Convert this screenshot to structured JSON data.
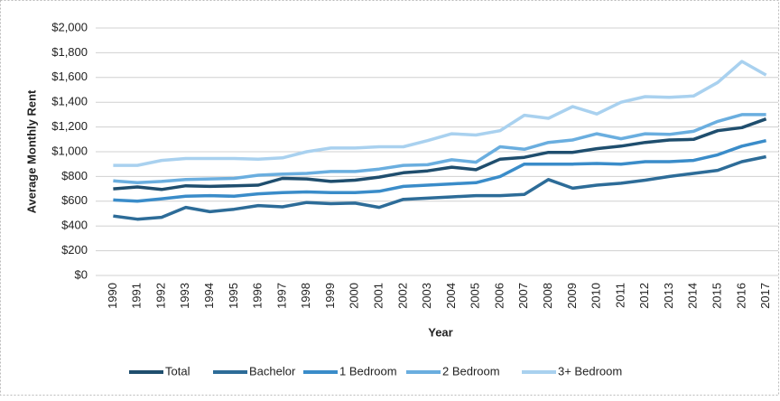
{
  "chart_data": {
    "type": "line",
    "x_label": "Year",
    "y_label": "Average Monthly Rent",
    "categories": [
      "1990",
      "1991",
      "1992",
      "1993",
      "1994",
      "1995",
      "1996",
      "1997",
      "1998",
      "1999",
      "2000",
      "2001",
      "2002",
      "2003",
      "2004",
      "2005",
      "2006",
      "2007",
      "2008",
      "2009",
      "2010",
      "2011",
      "2012",
      "2013",
      "2014",
      "2015",
      "2016",
      "2017"
    ],
    "series": [
      {
        "name": "Total",
        "color": "#1f4e6e",
        "values": [
          700,
          715,
          695,
          725,
          720,
          725,
          730,
          785,
          780,
          760,
          770,
          795,
          830,
          845,
          875,
          855,
          940,
          955,
          995,
          995,
          1025,
          1045,
          1075,
          1095,
          1100,
          1170,
          1195,
          1265
        ]
      },
      {
        "name": "Bachelor",
        "color": "#2d6c98",
        "values": [
          480,
          455,
          470,
          550,
          515,
          535,
          565,
          555,
          590,
          580,
          585,
          550,
          615,
          625,
          635,
          645,
          645,
          655,
          775,
          705,
          730,
          745,
          770,
          800,
          825,
          850,
          920,
          960
        ]
      },
      {
        "name": "1 Bedroom",
        "color": "#3a8cc9",
        "values": [
          610,
          600,
          620,
          640,
          645,
          640,
          660,
          670,
          675,
          670,
          670,
          680,
          720,
          730,
          740,
          750,
          800,
          900,
          900,
          900,
          905,
          900,
          920,
          920,
          930,
          975,
          1045,
          1090
        ]
      },
      {
        "name": "2 Bedroom",
        "color": "#6aaedf",
        "values": [
          765,
          750,
          760,
          775,
          780,
          785,
          810,
          820,
          825,
          840,
          840,
          860,
          890,
          895,
          935,
          915,
          1040,
          1020,
          1075,
          1095,
          1145,
          1105,
          1145,
          1140,
          1165,
          1245,
          1300,
          1300
        ]
      },
      {
        "name": "3+ Bedroom",
        "color": "#a9d1ef",
        "values": [
          890,
          890,
          930,
          945,
          945,
          945,
          940,
          950,
          1000,
          1030,
          1030,
          1040,
          1040,
          1090,
          1145,
          1135,
          1170,
          1295,
          1270,
          1365,
          1305,
          1400,
          1445,
          1440,
          1450,
          1560,
          1730,
          1620
        ]
      }
    ],
    "ylim": [
      0,
      2000
    ],
    "yticks": [
      {
        "value": 0,
        "label": "$0"
      },
      {
        "value": 200,
        "label": "$200"
      },
      {
        "value": 400,
        "label": "$400"
      },
      {
        "value": 600,
        "label": "$600"
      },
      {
        "value": 800,
        "label": "$800"
      },
      {
        "value": 1000,
        "label": "$1,000"
      },
      {
        "value": 1200,
        "label": "$1,200"
      },
      {
        "value": 1400,
        "label": "$1,400"
      },
      {
        "value": 1600,
        "label": "$1,600"
      },
      {
        "value": 1800,
        "label": "$1,800"
      },
      {
        "value": 2000,
        "label": "$2,000"
      }
    ],
    "grid": true,
    "legend": "bottom"
  }
}
